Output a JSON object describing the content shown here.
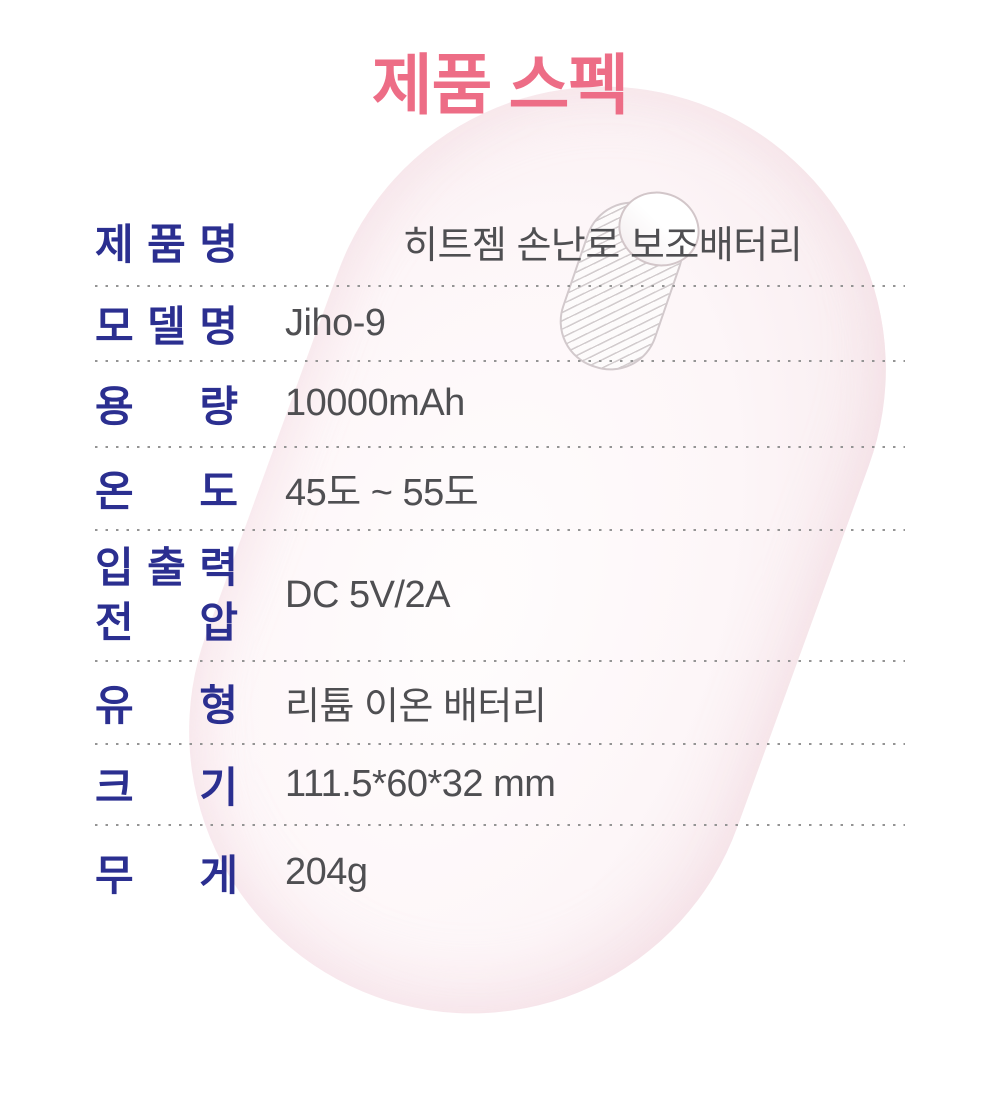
{
  "title": "제품 스펙",
  "colors": {
    "title_pink": "#ed6d86",
    "label_navy": "#2b2f90",
    "value_gray": "#4f4f52",
    "dot_gray": "#949494",
    "watermark_pink": "#f8ecef"
  },
  "table": {
    "rows": [
      {
        "label": "제품명",
        "value": "히트젬 손난로 보조배터리"
      },
      {
        "label": "모델명",
        "value": "Jiho-9"
      },
      {
        "label": "용량",
        "value": "10000mAh"
      },
      {
        "label": "온도",
        "value": "45도 ~ 55도"
      },
      {
        "label_lines": [
          "입출력",
          "전압"
        ],
        "value": "DC 5V/2A"
      },
      {
        "label": "유형",
        "value": "리튬 이온 배터리"
      },
      {
        "label": "크기",
        "value": "111.5*60*32 mm"
      },
      {
        "label": "무게",
        "value": "204g"
      }
    ]
  }
}
